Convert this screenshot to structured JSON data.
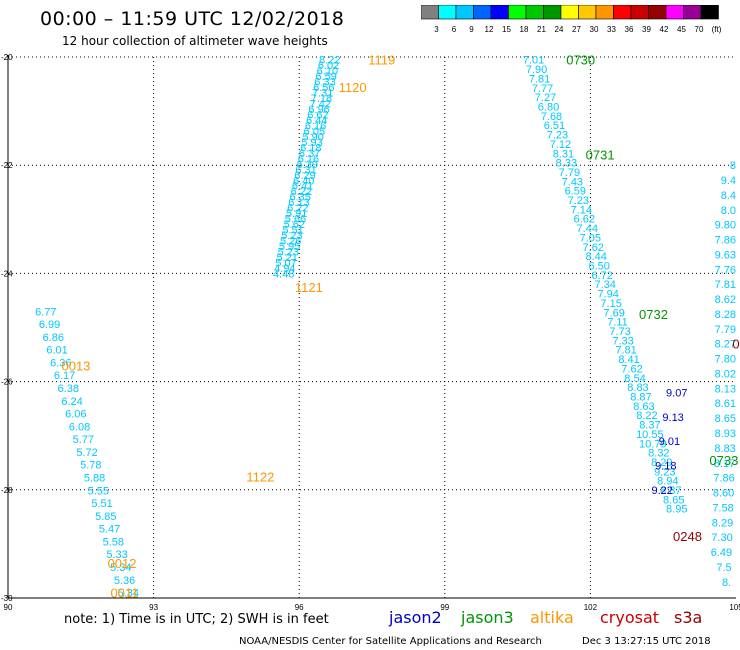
{
  "header": {
    "title": "00:00 – 11:59 UTC 12/02/2018",
    "subtitle": "12 hour collection of altimeter wave heights"
  },
  "color_scale": {
    "colors": [
      "#808080",
      "#00ffff",
      "#00c8ff",
      "#0064ff",
      "#0000ff",
      "#00ff00",
      "#00c800",
      "#009600",
      "#ffff00",
      "#ffc800",
      "#ff9600",
      "#ff0000",
      "#c80000",
      "#960000",
      "#ff00ff",
      "#960096",
      "#000000"
    ],
    "labels": [
      "3",
      "6",
      "9",
      "12",
      "15",
      "18",
      "21",
      "24",
      "27",
      "30",
      "33",
      "36",
      "39",
      "42",
      "45",
      "70",
      "(ft)"
    ]
  },
  "footer": {
    "note": "note: 1) Time is in UTC; 2) SWH is in feet",
    "credit": "NOAA/NESDIS Center for Satellite Applications and Research",
    "timestamp": "Dec 3 13:27:15 UTC 2018"
  },
  "satellites": [
    {
      "name": "jason2",
      "color": "#0000c8"
    },
    {
      "name": "jason3",
      "color": "#009600"
    },
    {
      "name": "altika",
      "color": "#ff9600"
    },
    {
      "name": "cryosat",
      "color": "#c80000"
    },
    {
      "name": "s3a",
      "color": "#960000"
    }
  ],
  "chart_data": {
    "type": "scatter",
    "xlim": [
      90,
      105
    ],
    "ylim": [
      -30,
      -20
    ],
    "x_ticks": [
      "90",
      "93",
      "96",
      "99",
      "102",
      "105"
    ],
    "y_ticks": [
      "-20",
      "-22",
      "-24",
      "-26",
      "-28",
      "-30"
    ],
    "grid": true,
    "tracks": [
      {
        "name": "track-0011-0013",
        "color": "#00c8ff",
        "x0": 91.0,
        "y0": -24.7,
        "x1": 92.7,
        "y1": -29.9,
        "values": [
          "6.77",
          "6.99",
          "6.86",
          "6.01",
          "6.36",
          "6.17",
          "6.38",
          "6.24",
          "6.06",
          "6.08",
          "5.77",
          "5.72",
          "5.78",
          "5.88",
          "5.55",
          "5.51",
          "5.85",
          "5.47",
          "5.58",
          "5.33",
          "5.34",
          "5.36",
          "5.34"
        ]
      },
      {
        "name": "track-1119-1122-upper",
        "color": "#00c8ff",
        "x0": 96.85,
        "y0": -20.05,
        "x1": 95.9,
        "y1": -24.0,
        "values": [
          "8.22",
          "6.02",
          "6.10",
          "6.59",
          "6.33",
          "6.56",
          "7.31",
          "7.18",
          "7.42",
          "6.96",
          "6.62",
          "6.44",
          "6.16",
          "6.05",
          "5.90",
          "5.93",
          "6.18",
          "6.37",
          "6.16",
          "6.39",
          "6.31",
          "6.29",
          "6.40",
          "6.41",
          "6.22",
          "6.35",
          "6.13",
          "6.22",
          "5.91",
          "5.66",
          "5.62",
          "5.51",
          "5.23",
          "5.26",
          "5.95",
          "5.23",
          "5.21",
          "5.07",
          "4.94",
          "4.48"
        ]
      },
      {
        "name": "track-0730-0731",
        "color": "#00c8ff",
        "x0": 101.05,
        "y0": -20.05,
        "x1": 104.0,
        "y1": -28.35,
        "values": [
          "7.01",
          "7.90",
          "7.81",
          "7.77",
          "7.27",
          "6.80",
          "7.68",
          "6.51",
          "7.23",
          "7.12",
          "8.31",
          "8.33",
          "7.79",
          "7.43",
          "6.59",
          "7.23",
          "7.14",
          "6.62",
          "7.44",
          "7.05",
          "7.62",
          "8.44",
          "6.50",
          "6.72",
          "7.34",
          "7.94",
          "7.15",
          "7.69",
          "7.11",
          "7.73",
          "7.33",
          "7.81",
          "8.41",
          "7.62",
          "8.54",
          "8.83",
          "8.87",
          "8.63",
          "8.22",
          "8.37",
          "10.55",
          "10.79",
          "8.32",
          "8.29",
          "9.23",
          "8.94",
          "8.87",
          "8.65",
          "8.95"
        ]
      },
      {
        "name": "track-jason2",
        "color": "#0000c8",
        "x0": 104.0,
        "y0": -26.2,
        "x1": 103.7,
        "y1": -28.0,
        "values": [
          "9.07",
          "9.13",
          "9.01",
          "9.18",
          "9.22"
        ]
      },
      {
        "name": "track-east",
        "color": "#00c8ff",
        "x0": 105.2,
        "y0": -22.0,
        "x1": 104.9,
        "y1": -29.7,
        "values": [
          "8",
          "9.4",
          "8.4",
          "8.0",
          "9.80",
          "7.86",
          "9.63",
          "7.76",
          "7.81",
          "8.62",
          "8.28",
          "7.79",
          "8.27",
          "7.80",
          "8.02",
          "8.13",
          "8.61",
          "8.65",
          "8.93",
          "8.83",
          "8.17",
          "7.86",
          "8.60",
          "7.58",
          "8.29",
          "7.30",
          "6.49",
          "7.5",
          "8."
        ]
      }
    ],
    "time_labels": [
      {
        "text": "1119",
        "color": "#ff9600",
        "x": 97.7,
        "y": -20.05
      },
      {
        "text": "1120",
        "color": "#ff9600",
        "x": 97.1,
        "y": -20.55
      },
      {
        "text": "1121",
        "color": "#ff9600",
        "x": 96.2,
        "y": -24.25
      },
      {
        "text": "1122",
        "color": "#ff9600",
        "x": 95.2,
        "y": -27.75
      },
      {
        "text": "0013",
        "color": "#ff9600",
        "x": 91.4,
        "y": -25.7
      },
      {
        "text": "0012",
        "color": "#ff9600",
        "x": 92.35,
        "y": -29.35
      },
      {
        "text": "0011",
        "color": "#ff9600",
        "x": 92.4,
        "y": -29.9
      },
      {
        "text": "0730",
        "color": "#009600",
        "x": 101.8,
        "y": -20.05
      },
      {
        "text": "0731",
        "color": "#009600",
        "x": 102.2,
        "y": -21.8
      },
      {
        "text": "0732",
        "color": "#009600",
        "x": 103.3,
        "y": -24.75
      },
      {
        "text": "0733",
        "color": "#009600",
        "x": 104.75,
        "y": -27.45
      },
      {
        "text": "0248",
        "color": "#960000",
        "x": 104.0,
        "y": -28.85
      },
      {
        "text": "0",
        "color": "#960000",
        "x": 105.0,
        "y": -25.3
      }
    ]
  }
}
